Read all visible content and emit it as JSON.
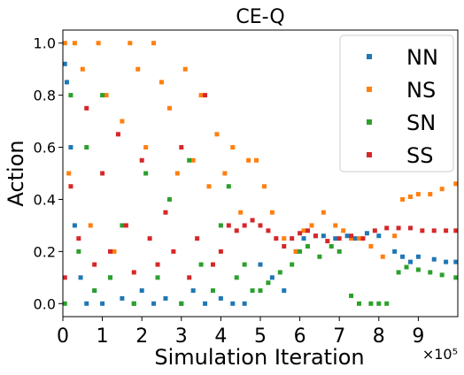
{
  "chart_data": {
    "type": "scatter",
    "title": "CE-Q",
    "xlabel": "Simulation Iteration",
    "ylabel": "Action",
    "x_multiplier_label": "×10⁵",
    "xlim": [
      0,
      10
    ],
    "ylim": [
      -0.05,
      1.05
    ],
    "x_ticks": [
      "0",
      "1",
      "2",
      "3",
      "4",
      "5",
      "6",
      "7",
      "8",
      "9"
    ],
    "y_ticks": [
      "0.0",
      "0.2",
      "0.4",
      "0.6",
      "0.8",
      "1.0"
    ],
    "legend_position": "top-right",
    "grid": false,
    "series": [
      {
        "name": "NN",
        "color": "#1f77b4",
        "x": [
          0.05,
          0.1,
          0.2,
          0.3,
          0.45,
          0.6,
          0.8,
          1.0,
          1.2,
          1.5,
          1.8,
          2.0,
          2.3,
          2.6,
          3.0,
          3.3,
          3.6,
          4.0,
          4.3,
          4.6,
          5.0,
          5.3,
          5.6,
          5.9,
          6.1,
          6.4,
          6.6,
          6.9,
          7.2,
          7.4,
          7.7,
          8.0,
          8.4,
          8.6,
          8.8,
          9.0,
          9.4,
          9.7,
          9.95
        ],
        "y": [
          0.92,
          0.85,
          0.6,
          0.3,
          0.1,
          0.0,
          0.05,
          0.0,
          0.1,
          0.02,
          0.0,
          0.05,
          0.0,
          0.02,
          0.0,
          0.05,
          0.0,
          0.02,
          0.0,
          0.0,
          0.15,
          0.1,
          0.05,
          0.2,
          0.25,
          0.26,
          0.26,
          0.25,
          0.26,
          0.25,
          0.27,
          0.26,
          0.2,
          0.18,
          0.16,
          0.18,
          0.17,
          0.16,
          0.16
        ]
      },
      {
        "name": "NS",
        "color": "#ff7f0e",
        "x": [
          0.05,
          0.15,
          0.3,
          0.5,
          0.7,
          0.9,
          1.1,
          1.3,
          1.5,
          1.7,
          1.9,
          2.1,
          2.3,
          2.5,
          2.7,
          2.9,
          3.1,
          3.3,
          3.5,
          3.7,
          3.9,
          4.1,
          4.3,
          4.5,
          4.7,
          4.9,
          5.1,
          5.3,
          5.6,
          5.9,
          6.1,
          6.3,
          6.6,
          6.9,
          7.1,
          7.3,
          7.5,
          7.8,
          8.1,
          8.4,
          8.6,
          8.8,
          9.0,
          9.3,
          9.6,
          9.95
        ],
        "y": [
          1.0,
          0.5,
          1.0,
          0.9,
          0.3,
          1.0,
          0.8,
          0.2,
          0.7,
          1.0,
          0.9,
          0.6,
          1.0,
          0.85,
          0.75,
          0.5,
          0.9,
          0.55,
          0.8,
          0.45,
          0.65,
          0.5,
          0.6,
          0.35,
          0.55,
          0.55,
          0.45,
          0.35,
          0.25,
          0.2,
          0.28,
          0.3,
          0.35,
          0.3,
          0.28,
          0.25,
          0.25,
          0.22,
          0.18,
          0.26,
          0.4,
          0.41,
          0.42,
          0.42,
          0.44,
          0.46
        ]
      },
      {
        "name": "SN",
        "color": "#2ca02c",
        "x": [
          0.05,
          0.2,
          0.4,
          0.6,
          0.8,
          1.0,
          1.2,
          1.5,
          1.8,
          2.1,
          2.4,
          2.7,
          3.0,
          3.2,
          3.5,
          3.8,
          4.0,
          4.2,
          4.4,
          4.6,
          4.8,
          5.0,
          5.2,
          5.5,
          5.8,
          6.0,
          6.2,
          6.5,
          6.8,
          7.0,
          7.3,
          7.5,
          7.8,
          8.0,
          8.2,
          8.5,
          8.7,
          9.0,
          9.3,
          9.6,
          9.95
        ],
        "y": [
          0.0,
          0.8,
          0.2,
          0.6,
          0.05,
          0.8,
          0.1,
          0.3,
          0.0,
          0.5,
          0.1,
          0.4,
          0.0,
          0.55,
          0.15,
          0.05,
          0.3,
          0.45,
          0.1,
          0.15,
          0.05,
          0.05,
          0.08,
          0.12,
          0.15,
          0.2,
          0.22,
          0.18,
          0.22,
          0.2,
          0.03,
          0.0,
          0.0,
          0.0,
          0.0,
          0.12,
          0.14,
          0.13,
          0.12,
          0.11,
          0.1
        ]
      },
      {
        "name": "SS",
        "color": "#d62728",
        "x": [
          0.05,
          0.2,
          0.4,
          0.6,
          0.8,
          1.0,
          1.2,
          1.4,
          1.6,
          1.8,
          2.0,
          2.2,
          2.4,
          2.6,
          2.8,
          3.0,
          3.2,
          3.4,
          3.6,
          3.8,
          4.0,
          4.2,
          4.4,
          4.6,
          4.8,
          5.0,
          5.2,
          5.4,
          5.6,
          5.8,
          6.0,
          6.2,
          6.4,
          6.7,
          7.0,
          7.3,
          7.6,
          7.9,
          8.2,
          8.5,
          8.8,
          9.1,
          9.4,
          9.7,
          9.95
        ],
        "y": [
          0.1,
          0.45,
          0.25,
          0.75,
          0.15,
          0.5,
          0.2,
          0.65,
          0.3,
          0.12,
          0.55,
          0.25,
          0.15,
          0.35,
          0.2,
          0.6,
          0.1,
          0.25,
          0.8,
          0.15,
          0.2,
          0.3,
          0.28,
          0.3,
          0.32,
          0.3,
          0.28,
          0.25,
          0.22,
          0.25,
          0.27,
          0.28,
          0.26,
          0.24,
          0.25,
          0.26,
          0.25,
          0.28,
          0.29,
          0.29,
          0.29,
          0.28,
          0.28,
          0.28,
          0.28
        ]
      }
    ]
  }
}
